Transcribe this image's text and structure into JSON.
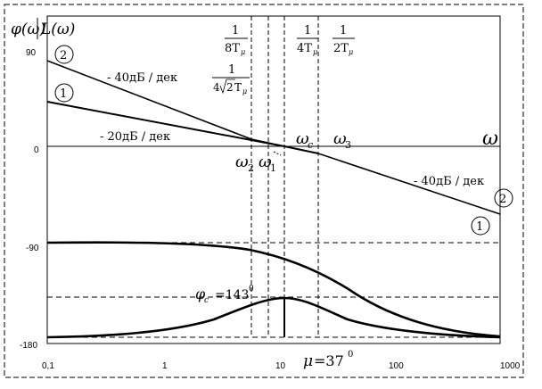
{
  "y_axis": {
    "label_phi": "φ(ω)",
    "label_L": "L(ω)",
    "ticks": [
      "90",
      "0",
      "-90",
      "-180"
    ]
  },
  "x_axis": {
    "ticks": [
      "0,1",
      "1",
      "10",
      "100",
      "1000"
    ],
    "omega": "ω"
  },
  "annotations": {
    "frac_8T": {
      "num": "1",
      "den": "8T",
      "sub": "μ"
    },
    "frac_4T": {
      "num": "1",
      "den": "4T",
      "sub": "μ"
    },
    "frac_2T": {
      "num": "1",
      "den": "2T",
      "sub": "μ"
    },
    "frac_sqrt": {
      "num": "1",
      "pre": "4",
      "rad": "2",
      "den": "T",
      "sub": "μ"
    },
    "slope_40_top": "- 40дБ / дек",
    "slope_20": "- 20дБ / дек",
    "slope_40_right": "- 40дБ / дек",
    "omega_c": "ω",
    "omega_c_sub": "c",
    "omega_3": "ω",
    "omega_3_sub": "3",
    "omega_2": "ω",
    "omega_2_sub": "2",
    "omega_1": "ω",
    "omega_1_sub": "1",
    "phi_c": "φ",
    "phi_c_sub": "c",
    "phi_c_value": "=143",
    "phi_c_deg": "0",
    "mu": "μ",
    "mu_value": "=37",
    "mu_deg": "0",
    "circle_1": "1",
    "circle_2": "2"
  }
}
